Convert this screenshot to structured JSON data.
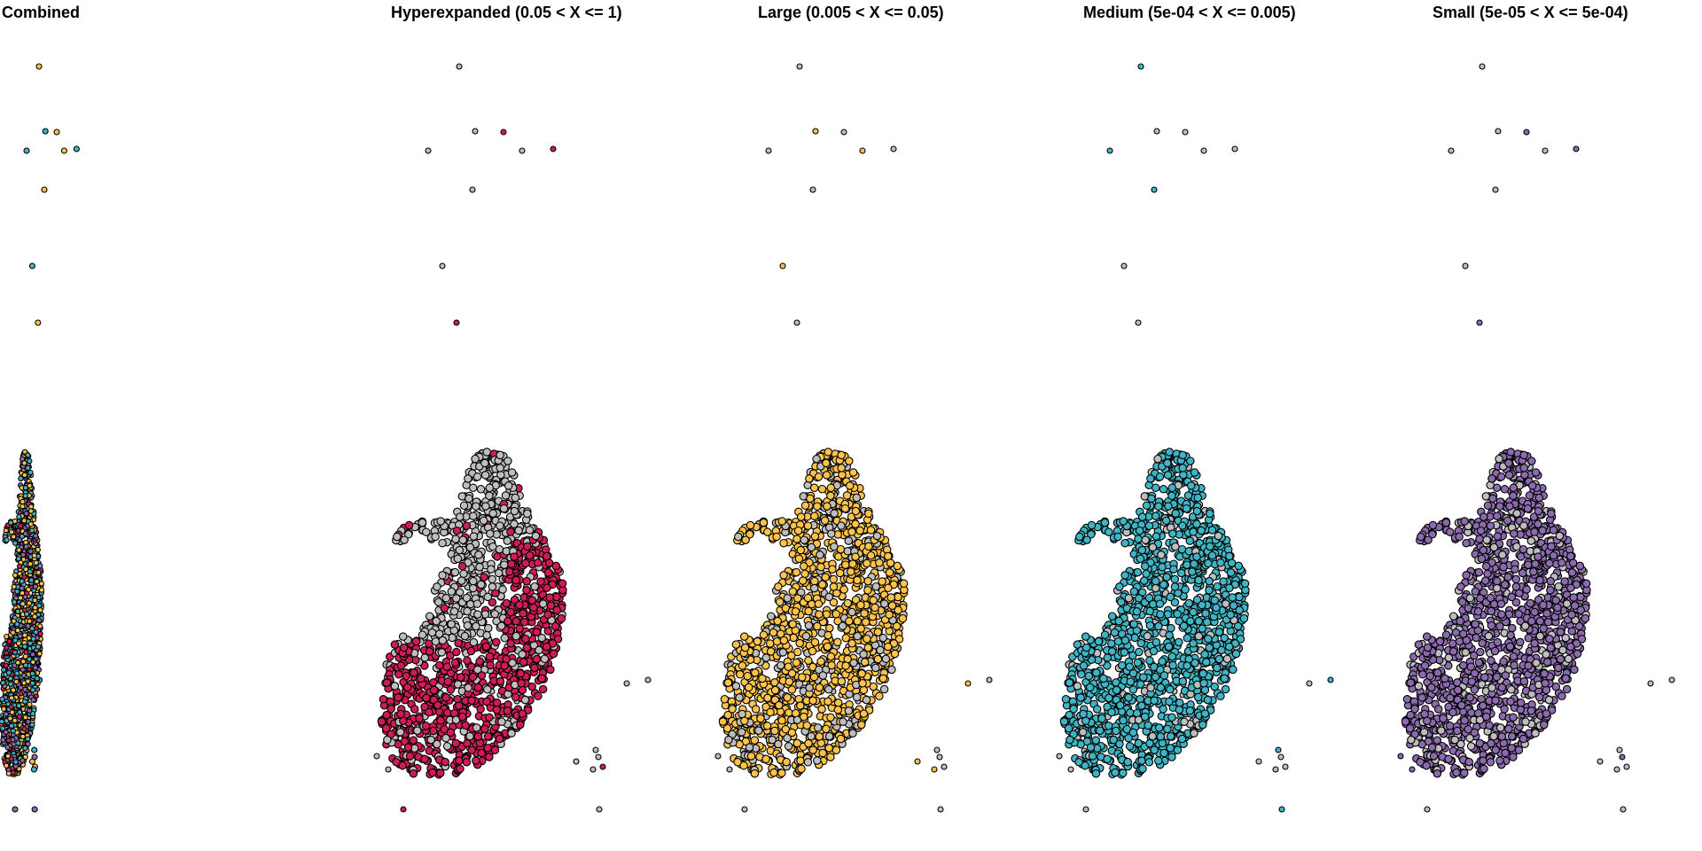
{
  "figure": {
    "background": "#ffffff",
    "panel_titles": [
      "Combined",
      "Hyperexpanded (0.05 < X <= 1)",
      "Large (0.005 < X <= 0.05)",
      "Medium (5e-04 < X <= 0.005)",
      "Small (5e-05 < X <= 5e-04)"
    ]
  },
  "chart_data": {
    "type": "scatter",
    "description_kind": "spatial clonal-expansion map",
    "grid": false,
    "axes_shown": false,
    "legend": "none",
    "background_point_color": "#bebebe",
    "point_outline_color": "#000000",
    "categories": [
      {
        "name": "Hyperexpanded (0.05 < X <= 1)",
        "color": "#d01c55"
      },
      {
        "name": "Large (0.005 < X <= 0.05)",
        "color": "#ffc34a"
      },
      {
        "name": "Medium (5e-04 < X <= 0.005)",
        "color": "#3fb4c4"
      },
      {
        "name": "Small (5e-05 < X <= 5e-04)",
        "color": "#8b6aae"
      }
    ],
    "panels": [
      {
        "title": "Combined",
        "highlight": "all"
      },
      {
        "title": "Hyperexpanded (0.05 < X <= 1)",
        "highlight": "#d01c55",
        "coverage": 0.35
      },
      {
        "title": "Large (0.005 < X <= 0.05)",
        "highlight": "#ffc34a",
        "coverage": 0.75
      },
      {
        "title": "Medium (5e-04 < X <= 0.005)",
        "highlight": "#3fb4c4",
        "coverage": 0.9
      },
      {
        "title": "Small (5e-05 < X <= 5e-04)",
        "highlight": "#8b6aae",
        "coverage": 0.8
      }
    ]
  }
}
